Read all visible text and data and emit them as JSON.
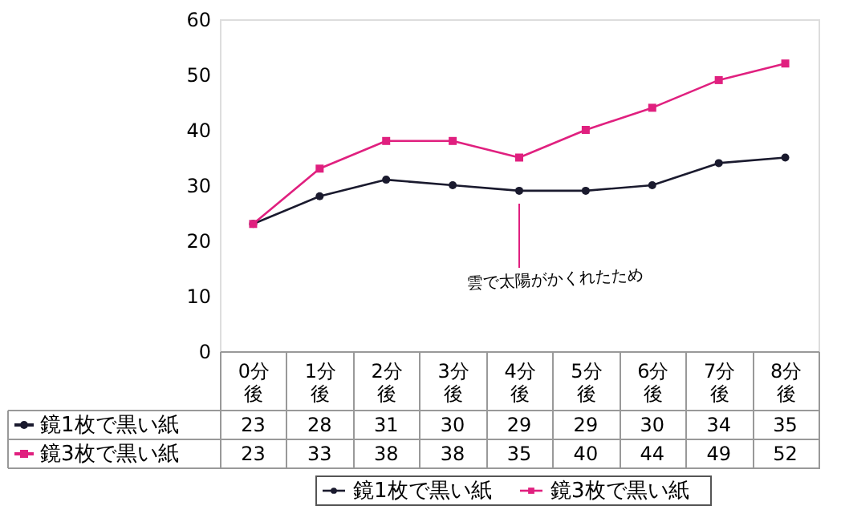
{
  "chart_data": {
    "type": "line",
    "categories": [
      "0分後",
      "1分後",
      "2分後",
      "3分後",
      "4分後",
      "5分後",
      "6分後",
      "7分後",
      "8分後"
    ],
    "series": [
      {
        "name": "鏡1枚で黒い紙",
        "color": "#1a1a2e",
        "marker": "circle",
        "values": [
          23,
          28,
          31,
          30,
          29,
          29,
          30,
          34,
          35
        ]
      },
      {
        "name": "鏡3枚で黒い紙",
        "color": "#e0207f",
        "marker": "square",
        "values": [
          23,
          33,
          38,
          38,
          35,
          40,
          44,
          49,
          52
        ]
      }
    ],
    "ylim": [
      0,
      60
    ],
    "yticks": [
      0,
      10,
      20,
      30,
      40,
      50,
      60
    ],
    "grid": false,
    "legend": "bottom",
    "data_labels": true,
    "annotations": [
      {
        "text": "雲で太陽がかくれたため",
        "x": "4分後",
        "y": 29
      }
    ]
  }
}
